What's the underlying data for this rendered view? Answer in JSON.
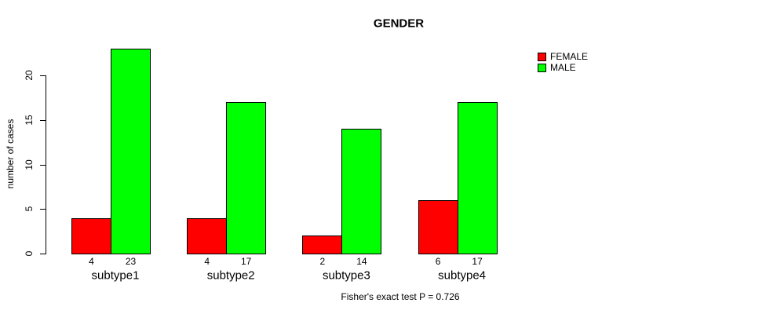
{
  "chart_data": {
    "type": "bar",
    "title": "GENDER",
    "categories": [
      "subtype1",
      "subtype2",
      "subtype3",
      "subtype4"
    ],
    "series": [
      {
        "name": "FEMALE",
        "color": "#ff0000",
        "values": [
          4,
          4,
          2,
          6
        ]
      },
      {
        "name": "MALE",
        "color": "#00ff00",
        "values": [
          23,
          17,
          14,
          17
        ]
      }
    ],
    "xlabel": "",
    "ylabel": "number of cases",
    "yticks": [
      0,
      5,
      10,
      15,
      20
    ],
    "ylim": [
      0,
      23
    ],
    "grid": false,
    "legend_position": "top-right",
    "bar_border_color": "#000000",
    "axis_color": "#000000",
    "annotation": "Fisher's exact test P = 0.726"
  }
}
